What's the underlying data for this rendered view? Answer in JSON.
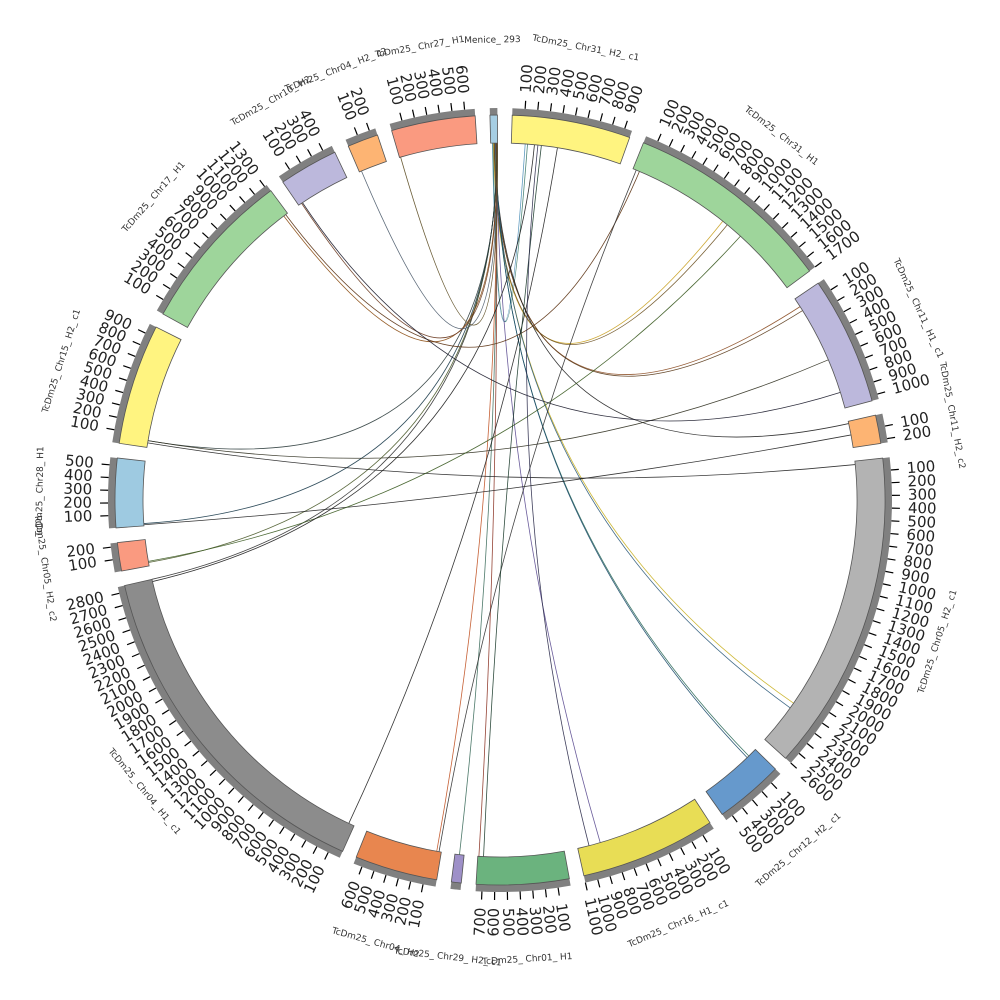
{
  "chart_data": {
    "type": "chord",
    "units_per_tick": 100,
    "segments": [
      {
        "name": "Menice_ 293",
        "length": 60,
        "color": "#a6cee3"
      },
      {
        "name": "TcDm25_ Chr31_ H2_ c1",
        "length": 960,
        "color": "#fff480"
      },
      {
        "name": "TcDm25_ Chr31_ H1",
        "length": 1700,
        "color": "#9ed59b"
      },
      {
        "name": "TcDm25_ Chr11_ H1_ c1",
        "length": 1040,
        "color": "#bcb8dc"
      },
      {
        "name": "TcDm25_ Chr11_ H2_ c2",
        "length": 230,
        "color": "#fdb473"
      },
      {
        "name": "TcDm25_ Chr05_ H2_ c1",
        "length": 2600,
        "color": "#b3b3b3"
      },
      {
        "name": "TcDm25_ Chr12_ H2_ c1",
        "length": 560,
        "color": "#6699cc"
      },
      {
        "name": "TcDm25_ Chr16_ H1_ c1",
        "length": 1100,
        "color": "#e8dd55"
      },
      {
        "name": "TcDm25_ Chr01_ H1",
        "length": 750,
        "color": "#6bb37e"
      },
      {
        "name": "TcDm25_ Chr29_ H2_ c1",
        "length": 80,
        "color": "#9e90c8"
      },
      {
        "name": "TcDm25_ Chr04_ H2",
        "length": 670,
        "color": "#e8864f"
      },
      {
        "name": "TcDm25_ Chr04_ H1_ c1",
        "length": 2850,
        "color": "#8c8c8c"
      },
      {
        "name": "TcDm25_ Chr05_ H2_ c2",
        "length": 230,
        "color": "#fa9a80"
      },
      {
        "name": "TcDm25_ Chr28_ H1",
        "length": 560,
        "color": "#9ecae1"
      },
      {
        "name": "TcDm25_ Chr15_ H2_ c1",
        "length": 980,
        "color": "#fff480"
      },
      {
        "name": "TcDm25_ Chr17_ H1",
        "length": 1320,
        "color": "#9ed59b"
      },
      {
        "name": "TcDm25_ Chr10_ H2",
        "length": 480,
        "color": "#bcb8dc"
      },
      {
        "name": "TcDm25_ Chr04_ H2_ c2",
        "length": 250,
        "color": "#fdb473"
      },
      {
        "name": "TcDm25_ Chr27_ H1",
        "length": 680,
        "color": "#fa9a80"
      }
    ],
    "links": [
      {
        "source": 0,
        "source_pos": 15,
        "target": 1,
        "target_pos": 120,
        "color": "#4c8fb8"
      },
      {
        "source": 0,
        "source_pos": 20,
        "target": 1,
        "target_pos": 140,
        "color": "#3c7a6a"
      },
      {
        "source": 0,
        "source_pos": 25,
        "target": 2,
        "target_pos": 900,
        "color": "#c9a020"
      },
      {
        "source": 0,
        "source_pos": 30,
        "target": 2,
        "target_pos": 950,
        "color": "#6b5020"
      },
      {
        "source": 0,
        "source_pos": 32,
        "target": 3,
        "target_pos": 80,
        "color": "#8a4a20"
      },
      {
        "source": 0,
        "source_pos": 34,
        "target": 3,
        "target_pos": 120,
        "color": "#5a3a1a"
      },
      {
        "source": 0,
        "source_pos": 36,
        "target": 4,
        "target_pos": 20,
        "color": "#202020"
      },
      {
        "source": 0,
        "source_pos": 38,
        "target": 5,
        "target_pos": 2200,
        "color": "#c9b020"
      },
      {
        "source": 0,
        "source_pos": 40,
        "target": 5,
        "target_pos": 2250,
        "color": "#2c5a7a"
      },
      {
        "source": 0,
        "source_pos": 42,
        "target": 6,
        "target_pos": 80,
        "color": "#2c6a5a"
      },
      {
        "source": 0,
        "source_pos": 44,
        "target": 6,
        "target_pos": 100,
        "color": "#1a4a6a"
      },
      {
        "source": 0,
        "source_pos": 46,
        "target": 7,
        "target_pos": 900,
        "color": "#5a4a90"
      },
      {
        "source": 0,
        "source_pos": 48,
        "target": 8,
        "target_pos": 740,
        "color": "#8a3020"
      },
      {
        "source": 0,
        "source_pos": 50,
        "target": 9,
        "target_pos": 40,
        "color": "#3a6a5a"
      },
      {
        "source": 0,
        "source_pos": 51,
        "target": 10,
        "target_pos": 40,
        "color": "#c05020"
      },
      {
        "source": 0,
        "source_pos": 52,
        "target": 11,
        "target_pos": 2850,
        "color": "#303030"
      },
      {
        "source": 0,
        "source_pos": 53,
        "target": 12,
        "target_pos": 30,
        "color": "#4a5a2a"
      },
      {
        "source": 0,
        "source_pos": 54,
        "target": 13,
        "target_pos": 20,
        "color": "#1a3a4a"
      },
      {
        "source": 0,
        "source_pos": 55,
        "target": 14,
        "target_pos": 60,
        "color": "#2a3a3a"
      },
      {
        "source": 0,
        "source_pos": 56,
        "target": 15,
        "target_pos": 1280,
        "color": "#8a4a10"
      },
      {
        "source": 0,
        "source_pos": 57,
        "target": 16,
        "target_pos": 30,
        "color": "#6a3a20"
      },
      {
        "source": 0,
        "source_pos": 58,
        "target": 17,
        "target_pos": 20,
        "color": "#4a5a6a"
      },
      {
        "source": 0,
        "source_pos": 59,
        "target": 18,
        "target_pos": 10,
        "color": "#5a4a20"
      },
      {
        "source": 14,
        "source_pos": 40,
        "target": 5,
        "target_pos": 30,
        "color": "#202020"
      },
      {
        "source": 14,
        "source_pos": 60,
        "target": 3,
        "target_pos": 600,
        "color": "#303020"
      },
      {
        "source": 13,
        "source_pos": 10,
        "target": 4,
        "target_pos": 120,
        "color": "#202020"
      },
      {
        "source": 12,
        "source_pos": 40,
        "target": 2,
        "target_pos": 1100,
        "color": "#3a5a20"
      },
      {
        "source": 11,
        "source_pos": 2830,
        "target": 1,
        "target_pos": 200,
        "color": "#1a1a1a"
      },
      {
        "source": 15,
        "source_pos": 1300,
        "target": 2,
        "target_pos": 60,
        "color": "#5a3010"
      },
      {
        "source": 16,
        "source_pos": 40,
        "target": 3,
        "target_pos": 900,
        "color": "#1a1a2a"
      },
      {
        "source": 11,
        "source_pos": 50,
        "target": 1,
        "target_pos": 400,
        "color": "#202020"
      },
      {
        "source": 10,
        "source_pos": 20,
        "target": 2,
        "target_pos": 30,
        "color": "#303030"
      },
      {
        "source": 8,
        "source_pos": 700,
        "target": 1,
        "target_pos": 260,
        "color": "#1a3a2a"
      },
      {
        "source": 7,
        "source_pos": 1000,
        "target": 1,
        "target_pos": 230,
        "color": "#2a2a4a"
      }
    ]
  }
}
